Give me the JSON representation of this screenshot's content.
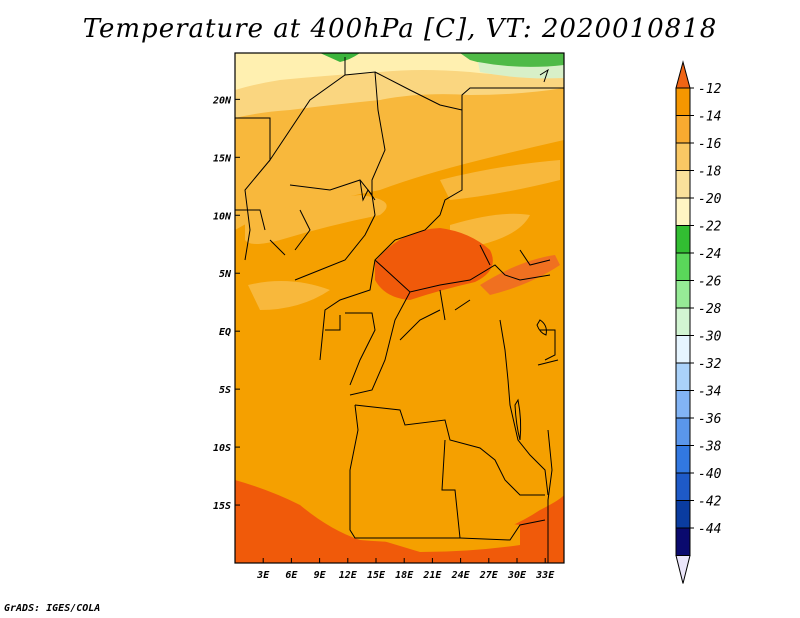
{
  "title": "Temperature at 400hPa [C], VT: 2020010818",
  "credit": "GrADS: IGES/COLA",
  "map": {
    "lon_range": [
      0,
      35
    ],
    "lat_range": [
      -20,
      24
    ],
    "x_ticks": [
      "3E",
      "6E",
      "9E",
      "12E",
      "15E",
      "18E",
      "21E",
      "24E",
      "27E",
      "30E",
      "33E"
    ],
    "y_ticks": [
      "20N",
      "15N",
      "10N",
      "5N",
      "EQ",
      "5S",
      "10S",
      "15S"
    ],
    "colors": {
      "deep_orange": "#f05a0a",
      "orange": "#f5a000",
      "light_orange": "#f8b83c",
      "pale_orange": "#fad680",
      "pale_yellow": "#fff5c0",
      "green": "#3cb43c",
      "border": "#000000"
    }
  },
  "colorbar": {
    "labels": [
      "-12",
      "-14",
      "-16",
      "-18",
      "-20",
      "-22",
      "-24",
      "-26",
      "-28",
      "-30",
      "-32",
      "-34",
      "-36",
      "-38",
      "-40",
      "-42",
      "-44"
    ],
    "colors": [
      "#f06414",
      "#f59600",
      "#f8aa30",
      "#fac864",
      "#fae19b",
      "#fff5c3",
      "#32be32",
      "#5ad75a",
      "#96eb96",
      "#d2f5d2",
      "#e6f5ff",
      "#aad2fa",
      "#82b4f5",
      "#5a96eb",
      "#3278e1",
      "#1e5ac8",
      "#0a3ca0",
      "#0a0a6e",
      "#ebe6fa"
    ]
  }
}
